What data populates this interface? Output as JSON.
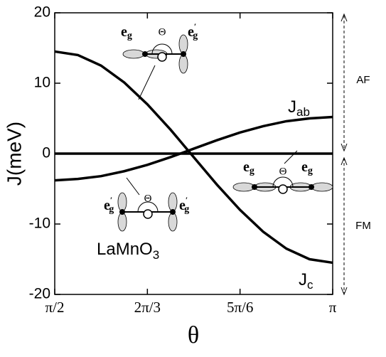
{
  "chart_data": {
    "type": "line",
    "x_label": "θ",
    "y_label": "J(meV)",
    "x": [
      1.5708,
      1.7017,
      1.8326,
      1.9635,
      2.0944,
      2.2253,
      2.3562,
      2.4871,
      2.618,
      2.7489,
      2.8798,
      3.0107,
      3.1416
    ],
    "xlim": [
      1.5708,
      3.1416
    ],
    "xticks": [
      {
        "value": 1.5708,
        "label": "π/2"
      },
      {
        "value": 2.0944,
        "label": "2π/3"
      },
      {
        "value": 2.618,
        "label": "5π/6"
      },
      {
        "value": 3.1416,
        "label": "π"
      }
    ],
    "ylim": [
      -20,
      20
    ],
    "yticks": [
      -20,
      -10,
      0,
      10,
      20
    ],
    "series": [
      {
        "color": "#000000",
        "values": [
          14.5,
          14.0,
          12.5,
          10.1,
          7.0,
          3.4,
          -0.5,
          -4.4,
          -8.0,
          -11.1,
          -13.5,
          -15.0,
          -15.5
        ]
      },
      {
        "color": "#000000",
        "values": [
          -3.8,
          -3.6,
          -3.2,
          -2.5,
          -1.6,
          -0.5,
          0.7,
          1.9,
          3.0,
          3.9,
          4.6,
          5.0,
          5.2
        ]
      }
    ],
    "annotations": {
      "jc": {
        "main": "J",
        "sub": "c"
      },
      "jab": {
        "main": "J",
        "sub": "ab"
      },
      "compound": {
        "main": "LaMnO",
        "sub": "3"
      },
      "af": "AF",
      "fm": "FM",
      "inset_top": {
        "left": {
          "main": "e",
          "sub": "g"
        },
        "angle": "Θ",
        "right": {
          "main": "e",
          "sub": "g",
          "prime": "′"
        }
      },
      "inset_right": {
        "left": {
          "main": "e",
          "sub": "g"
        },
        "angle": "Θ",
        "right": {
          "main": "e",
          "sub": "g"
        }
      },
      "inset_bottom": {
        "left": {
          "main": "e",
          "sub": "g",
          "prime": "′"
        },
        "angle": "Θ",
        "right": {
          "main": "e",
          "sub": "g",
          "prime": "′"
        }
      }
    }
  }
}
